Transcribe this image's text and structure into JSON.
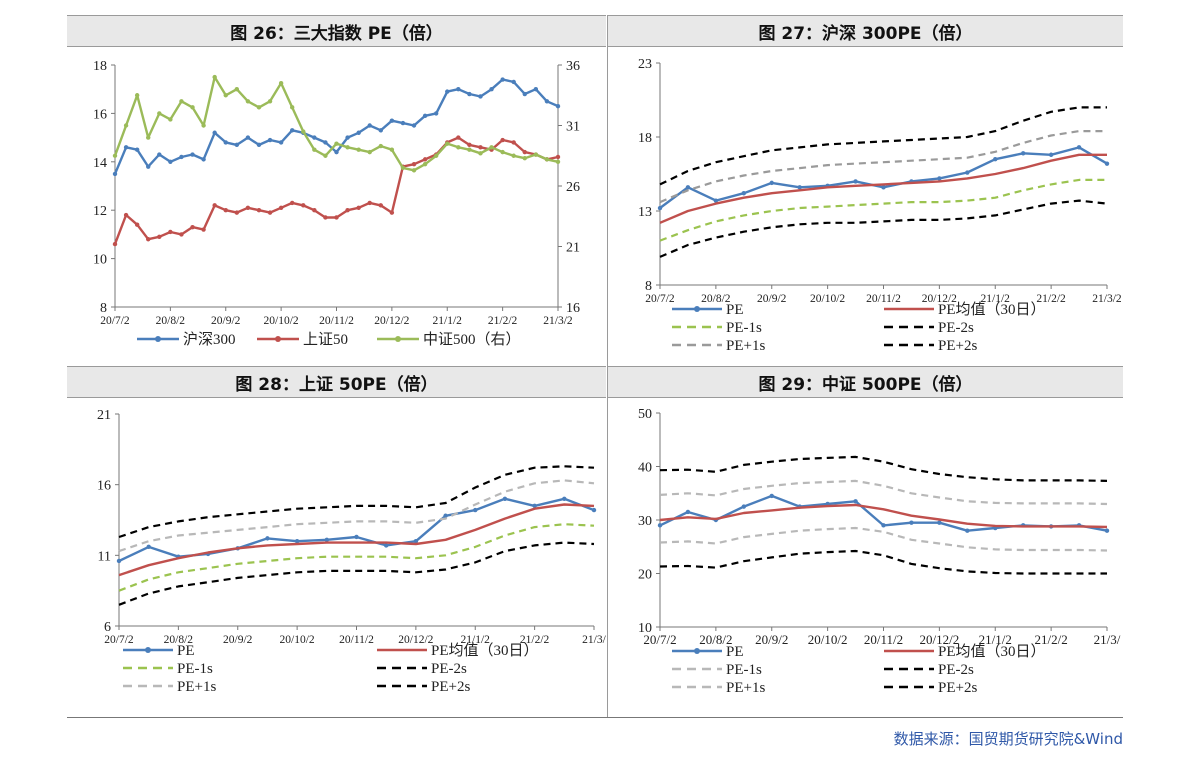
{
  "source_text": "数据来源：国贸期货研究院&Wind",
  "dates": [
    "20/7/2",
    "20/8/2",
    "20/9/2",
    "20/10/2",
    "20/11/2",
    "20/12/2",
    "21/1/2",
    "21/2/2",
    "21/3/2"
  ],
  "colors": {
    "blue": "#4a7ebb",
    "red": "#c0504d",
    "green": "#9bbb59",
    "lightgreen": "#9bc34f",
    "gray": "#9a9a9a",
    "lightgray": "#b8b8b8",
    "black": "#000000"
  },
  "chart_data": [
    {
      "id": "fig26",
      "type": "line",
      "title": "图 26：三大指数 PE（倍）",
      "ylim": [
        8,
        18
      ],
      "yticks": [
        8,
        10,
        12,
        14,
        16,
        18
      ],
      "y2lim": [
        16,
        36
      ],
      "y2ticks": [
        16,
        21,
        26,
        31,
        36
      ],
      "xtick_labels": [
        "20/7/2",
        "20/8/2",
        "20/9/2",
        "20/10/2",
        "20/11/2",
        "20/12/2",
        "21/1/2",
        "21/2/2",
        "21/3/2"
      ],
      "series": [
        {
          "name": "沪深300",
          "axis": "left",
          "color": "#4a7ebb",
          "marker": true,
          "x": [
            0,
            0.2,
            0.4,
            0.6,
            0.8,
            1.0,
            1.2,
            1.4,
            1.6,
            1.8,
            2.0,
            2.2,
            2.4,
            2.6,
            2.8,
            3.0,
            3.2,
            3.4,
            3.6,
            3.8,
            4.0,
            4.2,
            4.4,
            4.6,
            4.8,
            5.0,
            5.2,
            5.4,
            5.6,
            5.8,
            6.0,
            6.2,
            6.4,
            6.6,
            6.8,
            7.0,
            7.2,
            7.4,
            7.6,
            7.8,
            8.0
          ],
          "y": [
            13.5,
            14.6,
            14.5,
            13.8,
            14.3,
            14.0,
            14.2,
            14.3,
            14.1,
            15.2,
            14.8,
            14.7,
            15.0,
            14.7,
            14.9,
            14.8,
            15.3,
            15.2,
            15.0,
            14.8,
            14.4,
            15.0,
            15.2,
            15.5,
            15.3,
            15.7,
            15.6,
            15.5,
            15.9,
            16.0,
            16.9,
            17.0,
            16.8,
            16.7,
            17.0,
            17.4,
            17.3,
            16.8,
            17.0,
            16.5,
            16.3
          ]
        },
        {
          "name": "上证50",
          "axis": "left",
          "color": "#c0504d",
          "marker": true,
          "x": [
            0,
            0.2,
            0.4,
            0.6,
            0.8,
            1.0,
            1.2,
            1.4,
            1.6,
            1.8,
            2.0,
            2.2,
            2.4,
            2.6,
            2.8,
            3.0,
            3.2,
            3.4,
            3.6,
            3.8,
            4.0,
            4.2,
            4.4,
            4.6,
            4.8,
            5.0,
            5.2,
            5.4,
            5.6,
            5.8,
            6.0,
            6.2,
            6.4,
            6.6,
            6.8,
            7.0,
            7.2,
            7.4,
            7.6,
            7.8,
            8.0
          ],
          "y": [
            10.6,
            11.8,
            11.4,
            10.8,
            10.9,
            11.1,
            11.0,
            11.3,
            11.2,
            12.2,
            12.0,
            11.9,
            12.1,
            12.0,
            11.9,
            12.1,
            12.3,
            12.2,
            12.0,
            11.7,
            11.7,
            12.0,
            12.1,
            12.3,
            12.2,
            11.9,
            13.8,
            13.9,
            14.1,
            14.3,
            14.8,
            15.0,
            14.7,
            14.6,
            14.5,
            14.9,
            14.8,
            14.4,
            14.3,
            14.1,
            14.2
          ]
        },
        {
          "name": "中证500（右）",
          "axis": "right",
          "color": "#9bbb59",
          "marker": true,
          "x": [
            0,
            0.2,
            0.4,
            0.6,
            0.8,
            1.0,
            1.2,
            1.4,
            1.6,
            1.8,
            2.0,
            2.2,
            2.4,
            2.6,
            2.8,
            3.0,
            3.2,
            3.4,
            3.6,
            3.8,
            4.0,
            4.2,
            4.4,
            4.6,
            4.8,
            5.0,
            5.2,
            5.4,
            5.6,
            5.8,
            6.0,
            6.2,
            6.4,
            6.6,
            6.8,
            7.0,
            7.2,
            7.4,
            7.6,
            7.8,
            8.0
          ],
          "y": [
            28.5,
            31.0,
            33.5,
            30.0,
            32.0,
            31.5,
            33.0,
            32.5,
            31.0,
            35.0,
            33.5,
            34.0,
            33.0,
            32.5,
            33.0,
            34.5,
            32.5,
            30.5,
            29.0,
            28.5,
            29.5,
            29.2,
            29.0,
            28.8,
            29.3,
            29.0,
            27.5,
            27.3,
            27.8,
            28.5,
            29.5,
            29.2,
            29.0,
            28.7,
            29.2,
            28.8,
            28.5,
            28.3,
            28.6,
            28.2,
            28.0
          ]
        }
      ],
      "legend": [
        "沪深300",
        "上证50",
        "中证500（右）"
      ]
    },
    {
      "id": "fig27",
      "type": "line",
      "title": "图 27：沪深 300PE（倍）",
      "ylim": [
        8,
        23
      ],
      "yticks": [
        8,
        13,
        18,
        23
      ],
      "xtick_labels": [
        "20/7/2",
        "20/8/2",
        "20/9/2",
        "20/10/2",
        "20/11/2",
        "20/12/2",
        "21/1/2",
        "21/2/2",
        "21/3/2"
      ],
      "x": [
        0,
        0.5,
        1,
        1.5,
        2,
        2.5,
        3,
        3.5,
        4,
        4.5,
        5,
        5.5,
        6,
        6.5,
        7,
        7.5,
        8
      ],
      "series": [
        {
          "name": "PE",
          "color": "#4a7ebb",
          "style": "marker",
          "y": [
            13.2,
            14.6,
            13.7,
            14.2,
            14.9,
            14.6,
            14.7,
            15.0,
            14.6,
            15.0,
            15.2,
            15.6,
            16.5,
            16.9,
            16.8,
            17.3,
            16.2
          ]
        },
        {
          "name": "PE均值（30日）",
          "color": "#c0504d",
          "style": "solid",
          "y": [
            12.2,
            13.0,
            13.5,
            13.9,
            14.2,
            14.4,
            14.6,
            14.7,
            14.8,
            14.9,
            15.0,
            15.2,
            15.5,
            15.9,
            16.4,
            16.8,
            16.8
          ]
        },
        {
          "name": "PE-1s",
          "color": "#9bc34f",
          "style": "dash",
          "y": [
            11.0,
            11.7,
            12.3,
            12.7,
            13.0,
            13.2,
            13.3,
            13.4,
            13.5,
            13.6,
            13.6,
            13.7,
            13.9,
            14.4,
            14.8,
            15.1,
            15.1
          ]
        },
        {
          "name": "PE-2s",
          "color": "#000000",
          "style": "dash",
          "y": [
            9.9,
            10.7,
            11.2,
            11.6,
            11.9,
            12.1,
            12.2,
            12.2,
            12.3,
            12.4,
            12.4,
            12.5,
            12.7,
            13.1,
            13.5,
            13.7,
            13.5
          ]
        },
        {
          "name": "PE+1s",
          "color": "#9a9a9a",
          "style": "dash",
          "y": [
            13.6,
            14.4,
            15.0,
            15.4,
            15.7,
            15.9,
            16.1,
            16.2,
            16.3,
            16.4,
            16.5,
            16.6,
            17.0,
            17.6,
            18.1,
            18.4,
            18.4
          ]
        },
        {
          "name": "PE+2s",
          "color": "#000000",
          "style": "dash",
          "y": [
            14.8,
            15.7,
            16.3,
            16.7,
            17.1,
            17.3,
            17.5,
            17.6,
            17.7,
            17.8,
            17.9,
            18.0,
            18.4,
            19.1,
            19.7,
            20.0,
            20.0
          ]
        }
      ],
      "legend": [
        "PE",
        "PE均值（30日）",
        "PE-1s",
        "PE-2s",
        "PE+1s",
        "PE+2s"
      ]
    },
    {
      "id": "fig28",
      "type": "line",
      "title": "图 28：上证 50PE（倍）",
      "ylim": [
        6,
        21
      ],
      "yticks": [
        6,
        11,
        16,
        21
      ],
      "xtick_labels": [
        "20/7/2",
        "20/8/2",
        "20/9/2",
        "20/10/2",
        "20/11/2",
        "20/12/2",
        "21/1/2",
        "21/2/2",
        "21/3/"
      ],
      "x": [
        0,
        0.5,
        1,
        1.5,
        2,
        2.5,
        3,
        3.5,
        4,
        4.5,
        5,
        5.5,
        6,
        6.5,
        7,
        7.5,
        8
      ],
      "series": [
        {
          "name": "PE",
          "color": "#4a7ebb",
          "style": "marker",
          "y": [
            10.6,
            11.6,
            10.9,
            11.1,
            11.5,
            12.2,
            12.0,
            12.1,
            12.3,
            11.7,
            12.0,
            13.8,
            14.2,
            15.0,
            14.5,
            15.0,
            14.2
          ]
        },
        {
          "name": "PE均值（30日）",
          "color": "#c0504d",
          "style": "solid",
          "y": [
            9.6,
            10.3,
            10.8,
            11.2,
            11.5,
            11.7,
            11.8,
            11.9,
            11.9,
            11.9,
            11.8,
            12.1,
            12.8,
            13.6,
            14.3,
            14.6,
            14.5
          ]
        },
        {
          "name": "PE-1s",
          "color": "#9bc34f",
          "style": "dash",
          "y": [
            8.5,
            9.3,
            9.8,
            10.1,
            10.4,
            10.6,
            10.8,
            10.9,
            10.9,
            10.9,
            10.8,
            11.0,
            11.6,
            12.4,
            13.0,
            13.2,
            13.1
          ]
        },
        {
          "name": "PE-2s",
          "color": "#000000",
          "style": "dash",
          "y": [
            7.5,
            8.3,
            8.8,
            9.1,
            9.4,
            9.6,
            9.8,
            9.9,
            9.9,
            9.9,
            9.8,
            10.0,
            10.5,
            11.3,
            11.7,
            11.9,
            11.8
          ]
        },
        {
          "name": "PE+1s",
          "color": "#b8b8b8",
          "style": "dash",
          "y": [
            11.3,
            12.0,
            12.4,
            12.6,
            12.8,
            13.0,
            13.2,
            13.3,
            13.4,
            13.4,
            13.3,
            13.6,
            14.6,
            15.5,
            16.1,
            16.3,
            16.1
          ]
        },
        {
          "name": "PE+2s",
          "color": "#000000",
          "style": "dash",
          "y": [
            12.3,
            13.0,
            13.4,
            13.7,
            13.9,
            14.1,
            14.3,
            14.4,
            14.5,
            14.5,
            14.4,
            14.7,
            15.8,
            16.7,
            17.2,
            17.3,
            17.2
          ]
        }
      ],
      "legend": [
        "PE",
        "PE均值（30日）",
        "PE-1s",
        "PE-2s",
        "PE+1s",
        "PE+2s"
      ]
    },
    {
      "id": "fig29",
      "type": "line",
      "title": "图 29：中证 500PE（倍）",
      "ylim": [
        10,
        50
      ],
      "yticks": [
        10,
        20,
        30,
        40,
        50
      ],
      "xtick_labels": [
        "20/7/2",
        "20/8/2",
        "20/9/2",
        "20/10/2",
        "20/11/2",
        "20/12/2",
        "21/1/2",
        "21/2/2",
        "21/3/"
      ],
      "x": [
        0,
        0.5,
        1,
        1.5,
        2,
        2.5,
        3,
        3.5,
        4,
        4.5,
        5,
        5.5,
        6,
        6.5,
        7,
        7.5,
        8
      ],
      "series": [
        {
          "name": "PE",
          "color": "#4a7ebb",
          "style": "marker",
          "y": [
            29.0,
            31.5,
            30.0,
            32.5,
            34.5,
            32.5,
            33.0,
            33.5,
            29.0,
            29.5,
            29.5,
            28.0,
            28.5,
            29.0,
            28.8,
            29.0,
            28.0
          ]
        },
        {
          "name": "PE均值（30日）",
          "color": "#c0504d",
          "style": "solid",
          "y": [
            30.0,
            30.5,
            30.2,
            31.3,
            31.8,
            32.3,
            32.6,
            32.8,
            32.0,
            30.8,
            30.1,
            29.3,
            28.9,
            28.8,
            28.8,
            28.8,
            28.7
          ]
        },
        {
          "name": "PE-1s",
          "color": "#b8b8b8",
          "style": "dash",
          "y": [
            25.8,
            26.0,
            25.6,
            26.8,
            27.4,
            28.0,
            28.3,
            28.5,
            27.8,
            26.3,
            25.6,
            24.9,
            24.5,
            24.4,
            24.4,
            24.4,
            24.3
          ]
        },
        {
          "name": "PE-2s",
          "color": "#000000",
          "style": "dash",
          "y": [
            21.3,
            21.4,
            21.1,
            22.3,
            23.0,
            23.7,
            24.0,
            24.2,
            23.4,
            21.8,
            21.0,
            20.4,
            20.1,
            20.0,
            20.0,
            20.0,
            20.0
          ]
        },
        {
          "name": "PE+1s",
          "color": "#b8b8b8",
          "style": "dash",
          "y": [
            34.7,
            35.0,
            34.6,
            35.8,
            36.4,
            36.9,
            37.1,
            37.3,
            36.4,
            35.0,
            34.2,
            33.5,
            33.2,
            33.1,
            33.1,
            33.1,
            33.0
          ]
        },
        {
          "name": "PE+2s",
          "color": "#000000",
          "style": "dash",
          "y": [
            39.3,
            39.4,
            39.0,
            40.3,
            40.9,
            41.4,
            41.6,
            41.8,
            40.9,
            39.5,
            38.6,
            38.0,
            37.6,
            37.4,
            37.4,
            37.4,
            37.3
          ]
        }
      ],
      "legend": [
        "PE",
        "PE均值（30日）",
        "PE-1s",
        "PE-2s",
        "PE+1s",
        "PE+2s"
      ]
    }
  ]
}
